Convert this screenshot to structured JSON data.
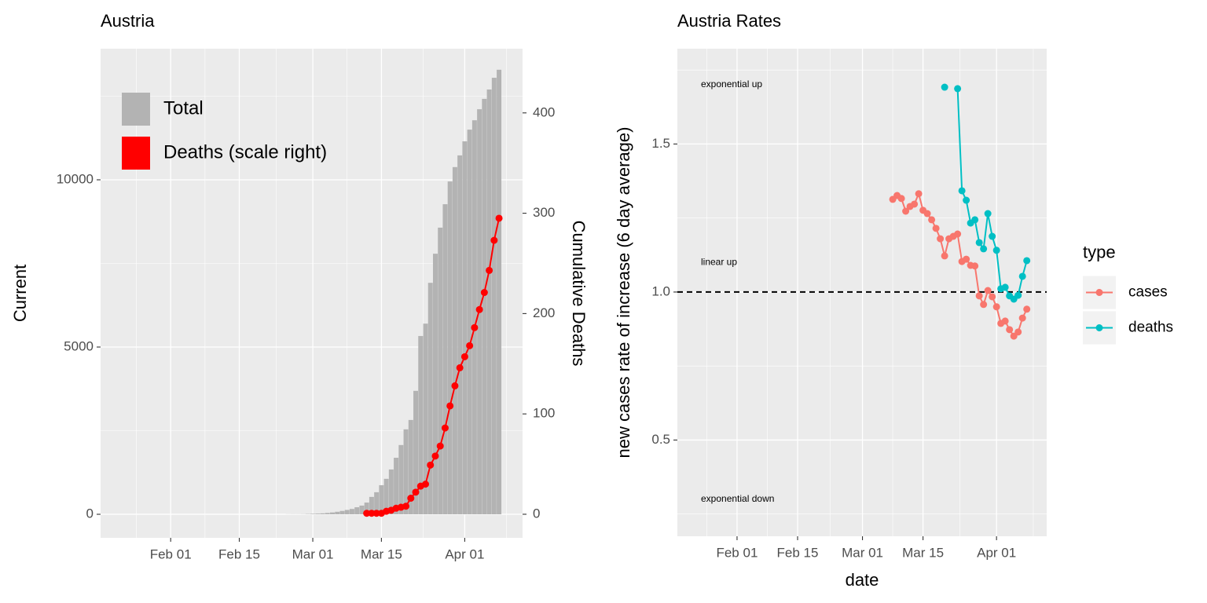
{
  "chart_data": [
    {
      "type": "combo",
      "title": "Austria",
      "ylabel": "Current",
      "y2label": "Cumulative Deaths",
      "categories": [
        "Jan 22",
        "Jan 23",
        "Jan 24",
        "Jan 25",
        "Jan 26",
        "Jan 27",
        "Jan 28",
        "Jan 29",
        "Jan 30",
        "Jan 31",
        "Feb 01",
        "Feb 02",
        "Feb 03",
        "Feb 04",
        "Feb 05",
        "Feb 06",
        "Feb 07",
        "Feb 08",
        "Feb 09",
        "Feb 10",
        "Feb 11",
        "Feb 12",
        "Feb 13",
        "Feb 14",
        "Feb 15",
        "Feb 16",
        "Feb 17",
        "Feb 18",
        "Feb 19",
        "Feb 20",
        "Feb 21",
        "Feb 22",
        "Feb 23",
        "Feb 24",
        "Feb 25",
        "Feb 26",
        "Feb 27",
        "Feb 28",
        "Feb 29",
        "Mar 01",
        "Mar 02",
        "Mar 03",
        "Mar 04",
        "Mar 05",
        "Mar 06",
        "Mar 07",
        "Mar 08",
        "Mar 09",
        "Mar 10",
        "Mar 11",
        "Mar 12",
        "Mar 13",
        "Mar 14",
        "Mar 15",
        "Mar 16",
        "Mar 17",
        "Mar 18",
        "Mar 19",
        "Mar 20",
        "Mar 21",
        "Mar 22",
        "Mar 23",
        "Mar 24",
        "Mar 25",
        "Mar 26",
        "Mar 27",
        "Mar 28",
        "Mar 29",
        "Mar 30",
        "Mar 31",
        "Apr 01",
        "Apr 02",
        "Apr 03",
        "Apr 04",
        "Apr 05",
        "Apr 06",
        "Apr 07",
        "Apr 08"
      ],
      "series": [
        {
          "name": "Total",
          "type": "bar",
          "color": "#B3B3B3",
          "values": [
            0,
            0,
            0,
            0,
            0,
            0,
            0,
            0,
            0,
            0,
            0,
            0,
            0,
            0,
            0,
            0,
            0,
            0,
            0,
            0,
            0,
            0,
            0,
            0,
            0,
            0,
            0,
            0,
            0,
            0,
            0,
            0,
            0,
            0,
            2,
            3,
            3,
            5,
            10,
            15,
            20,
            28,
            40,
            55,
            75,
            100,
            130,
            160,
            210,
            260,
            350,
            520,
            660,
            870,
            1060,
            1340,
            1690,
            2070,
            2540,
            2820,
            3690,
            5330,
            5700,
            6920,
            7790,
            8570,
            9270,
            9950,
            10380,
            10730,
            11150,
            11500,
            11780,
            12110,
            12420,
            12700,
            13050,
            13290
          ]
        },
        {
          "name": "Deaths (scale right)",
          "type": "line",
          "axis": "y2",
          "color": "#FF0000",
          "values": [
            null,
            null,
            null,
            null,
            null,
            null,
            null,
            null,
            null,
            null,
            null,
            null,
            null,
            null,
            null,
            null,
            null,
            null,
            null,
            null,
            null,
            null,
            null,
            null,
            null,
            null,
            null,
            null,
            null,
            null,
            null,
            null,
            null,
            null,
            null,
            null,
            null,
            null,
            null,
            null,
            null,
            null,
            null,
            null,
            null,
            null,
            null,
            null,
            null,
            null,
            1,
            1,
            1,
            1,
            3,
            4,
            6,
            7,
            8,
            16,
            22,
            28,
            30,
            49,
            58,
            68,
            86,
            108,
            128,
            146,
            157,
            168,
            186,
            204,
            221,
            243,
            273,
            295
          ]
        }
      ],
      "ylim": [
        -704,
        13920
      ],
      "yticks": [
        0,
        5000,
        10000
      ],
      "y2lim": [
        -23.5,
        464
      ],
      "y2ticks": [
        0,
        100,
        200,
        300,
        400
      ],
      "xticks": [
        "Feb 01",
        "Feb 15",
        "Mar 01",
        "Mar 15",
        "Apr 01"
      ],
      "legend": "top-left",
      "grid": true
    },
    {
      "type": "line",
      "title": "Austria Rates",
      "xlabel": "date",
      "ylabel": "new cases rate of increase (6 day average)",
      "legend_title": "type",
      "categories": [
        "Jan 22",
        "Jan 23",
        "Jan 24",
        "Jan 25",
        "Jan 26",
        "Jan 27",
        "Jan 28",
        "Jan 29",
        "Jan 30",
        "Jan 31",
        "Feb 01",
        "Feb 02",
        "Feb 03",
        "Feb 04",
        "Feb 05",
        "Feb 06",
        "Feb 07",
        "Feb 08",
        "Feb 09",
        "Feb 10",
        "Feb 11",
        "Feb 12",
        "Feb 13",
        "Feb 14",
        "Feb 15",
        "Feb 16",
        "Feb 17",
        "Feb 18",
        "Feb 19",
        "Feb 20",
        "Feb 21",
        "Feb 22",
        "Feb 23",
        "Feb 24",
        "Feb 25",
        "Feb 26",
        "Feb 27",
        "Feb 28",
        "Feb 29",
        "Mar 01",
        "Mar 02",
        "Mar 03",
        "Mar 04",
        "Mar 05",
        "Mar 06",
        "Mar 07",
        "Mar 08",
        "Mar 09",
        "Mar 10",
        "Mar 11",
        "Mar 12",
        "Mar 13",
        "Mar 14",
        "Mar 15",
        "Mar 16",
        "Mar 17",
        "Mar 18",
        "Mar 19",
        "Mar 20",
        "Mar 21",
        "Mar 22",
        "Mar 23",
        "Mar 24",
        "Mar 25",
        "Mar 26",
        "Mar 27",
        "Mar 28",
        "Mar 29",
        "Mar 30",
        "Mar 31",
        "Apr 01",
        "Apr 02",
        "Apr 03",
        "Apr 04",
        "Apr 05",
        "Apr 06",
        "Apr 07",
        "Apr 08"
      ],
      "series": [
        {
          "name": "cases",
          "color": "#F8766D",
          "values": [
            null,
            null,
            null,
            null,
            null,
            null,
            null,
            null,
            null,
            null,
            null,
            null,
            null,
            null,
            null,
            null,
            null,
            null,
            null,
            null,
            null,
            null,
            null,
            null,
            null,
            null,
            null,
            null,
            null,
            null,
            null,
            null,
            null,
            null,
            null,
            null,
            null,
            null,
            null,
            null,
            null,
            null,
            null,
            null,
            null,
            null,
            1.313,
            1.326,
            1.316,
            1.273,
            1.289,
            1.297,
            1.332,
            1.276,
            1.265,
            1.244,
            1.215,
            1.18,
            1.122,
            1.18,
            1.188,
            1.196,
            1.103,
            1.111,
            1.09,
            1.088,
            0.987,
            0.958,
            1.005,
            0.984,
            0.95,
            0.894,
            0.902,
            0.873,
            0.851,
            0.865,
            0.912,
            0.942
          ]
        },
        {
          "name": "deaths",
          "color": "#00BFC4",
          "values": [
            null,
            null,
            null,
            null,
            null,
            null,
            null,
            null,
            null,
            null,
            null,
            null,
            null,
            null,
            null,
            null,
            null,
            null,
            null,
            null,
            null,
            null,
            null,
            null,
            null,
            null,
            null,
            null,
            null,
            null,
            null,
            null,
            null,
            null,
            null,
            null,
            null,
            null,
            null,
            null,
            null,
            null,
            null,
            null,
            null,
            null,
            null,
            null,
            null,
            null,
            null,
            null,
            null,
            null,
            null,
            null,
            null,
            null,
            1.692,
            null,
            null,
            1.687,
            1.342,
            1.31,
            1.233,
            1.244,
            1.167,
            1.146,
            1.265,
            1.188,
            1.141,
            1.011,
            1.016,
            0.987,
            0.976,
            0.989,
            1.053,
            1.106
          ]
        }
      ],
      "ylim": [
        0.175,
        1.822
      ],
      "yticks": [
        0.5,
        {
          "value": 1,
          "label": "1.0"
        },
        1.5
      ],
      "xticks": [
        "Feb 01",
        "Feb 15",
        "Mar 01",
        "Mar 15",
        "Apr 01"
      ],
      "hline": 1,
      "annotations": [
        {
          "text": "exponential up",
          "y": 1.7
        },
        {
          "text": "linear up",
          "y": 1.1
        },
        {
          "text": "exponential down",
          "y": 0.3
        }
      ],
      "legend": "right",
      "grid": true
    }
  ]
}
